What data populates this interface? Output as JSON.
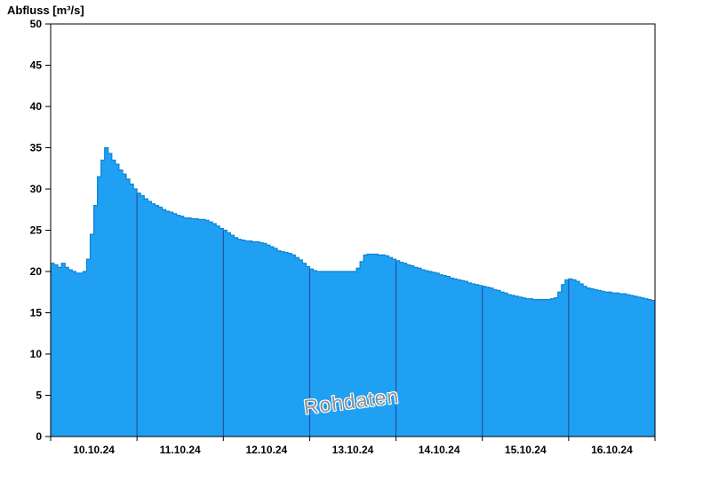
{
  "title": "Abfluss [m³/s]",
  "watermark": "Rohdaten",
  "colors": {
    "area_fill": "#1fa0f2",
    "area_stroke": "#0d84d6",
    "day_gridline": "#2e3f96",
    "axis": "#000000",
    "watermark_text": "#8f8f8f"
  },
  "chart_data": {
    "type": "area",
    "title": "Abfluss [m³/s]",
    "ylabel": "Abfluss [m³/s]",
    "xlabel": "",
    "ylim": [
      0,
      50
    ],
    "y_ticks": [
      0,
      5,
      10,
      15,
      20,
      25,
      30,
      35,
      40,
      45,
      50
    ],
    "x_tick_labels": [
      "10.10.24",
      "11.10.24",
      "12.10.24",
      "13.10.24",
      "14.10.24",
      "15.10.24",
      "16.10.24"
    ],
    "x_start": "10.10.24 00:00",
    "x_interval_hours": 1,
    "grid": "vertical-day-lines-only",
    "legend": "none",
    "step_interpolation": true,
    "series": [
      {
        "name": "Rohdaten",
        "unit": "m³/s",
        "values": [
          21.0,
          20.8,
          20.5,
          21.0,
          20.5,
          20.2,
          20.0,
          19.8,
          19.8,
          20.0,
          21.5,
          24.5,
          28.0,
          31.5,
          33.5,
          35.0,
          34.3,
          33.5,
          33.0,
          32.3,
          31.8,
          31.2,
          30.6,
          30.0,
          29.5,
          29.2,
          28.8,
          28.5,
          28.2,
          28.0,
          27.8,
          27.5,
          27.3,
          27.2,
          27.0,
          26.8,
          26.7,
          26.5,
          26.5,
          26.4,
          26.4,
          26.3,
          26.3,
          26.2,
          26.0,
          25.8,
          25.5,
          25.2,
          25.0,
          24.7,
          24.4,
          24.1,
          23.9,
          23.8,
          23.7,
          23.7,
          23.6,
          23.6,
          23.5,
          23.4,
          23.2,
          23.0,
          22.8,
          22.5,
          22.4,
          22.3,
          22.2,
          22.0,
          21.7,
          21.4,
          21.0,
          20.6,
          20.3,
          20.1,
          20.0,
          20.0,
          20.0,
          20.0,
          20.0,
          20.0,
          20.0,
          20.0,
          20.0,
          20.0,
          20.0,
          20.4,
          21.2,
          22.0,
          22.1,
          22.1,
          22.1,
          22.0,
          22.0,
          21.9,
          21.7,
          21.5,
          21.3,
          21.1,
          21.0,
          20.8,
          20.7,
          20.5,
          20.4,
          20.2,
          20.1,
          20.0,
          19.9,
          19.8,
          19.6,
          19.5,
          19.4,
          19.2,
          19.1,
          19.0,
          18.9,
          18.8,
          18.6,
          18.5,
          18.4,
          18.3,
          18.2,
          18.1,
          18.0,
          17.8,
          17.7,
          17.5,
          17.4,
          17.2,
          17.1,
          17.0,
          16.9,
          16.8,
          16.7,
          16.7,
          16.6,
          16.6,
          16.6,
          16.6,
          16.6,
          16.7,
          16.8,
          17.5,
          18.4,
          19.0,
          19.1,
          19.0,
          18.8,
          18.5,
          18.2,
          18.0,
          17.9,
          17.8,
          17.7,
          17.6,
          17.5,
          17.5,
          17.4,
          17.4,
          17.3,
          17.3,
          17.2,
          17.1,
          17.0,
          16.9,
          16.8,
          16.7,
          16.6,
          16.5,
          16.4
        ]
      }
    ],
    "watermark": "Rohdaten"
  }
}
